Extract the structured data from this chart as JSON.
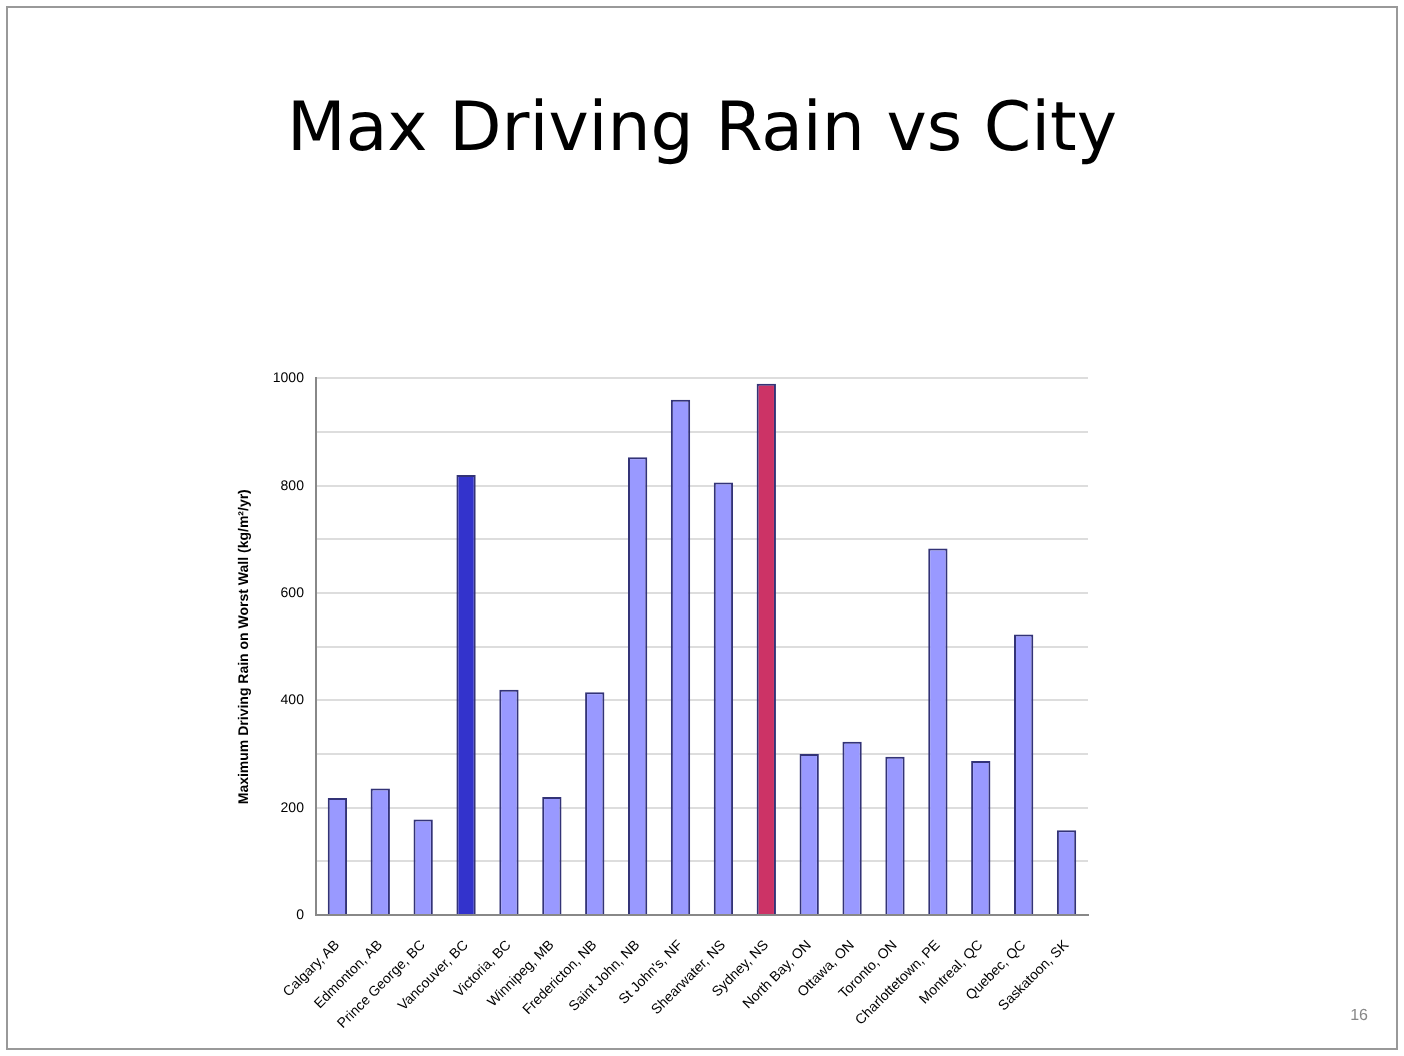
{
  "chart_data": {
    "type": "bar",
    "title": "Max Driving Rain vs City",
    "ylabel": "Maximum Driving Rain on Worst Wall (kg/m²/yr)",
    "categories": [
      "Calgary, AB",
      "Edmonton, AB",
      "Prince George, BC",
      "Vancouver, BC",
      "Victoria, BC",
      "Winnipeg, MB",
      "Fredericton, NB",
      "Saint John, NB",
      "St John's, NF",
      "Shearwater, NS",
      "Sydney, NS",
      "North Bay, ON",
      "Ottawa, ON",
      "Toronto, ON",
      "Charlottetown, PE",
      "Montreal, QC",
      "Quebec, QC",
      "Saskatoon, SK"
    ],
    "values": [
      218,
      236,
      178,
      820,
      420,
      220,
      415,
      853,
      960,
      806,
      990,
      300,
      323,
      295,
      683,
      287,
      523,
      158
    ],
    "colors": [
      "#9999ff",
      "#9999ff",
      "#9999ff",
      "#3333cc",
      "#9999ff",
      "#9999ff",
      "#9999ff",
      "#9999ff",
      "#9999ff",
      "#9999ff",
      "#cc3366",
      "#9999ff",
      "#9999ff",
      "#9999ff",
      "#9999ff",
      "#9999ff",
      "#9999ff",
      "#9999ff"
    ],
    "ylim": [
      0,
      1000
    ],
    "yticks": [
      0,
      {
        "value": 100,
        "label": null
      },
      200,
      {
        "value": 300,
        "label": null
      },
      400,
      {
        "value": 500,
        "label": null
      },
      600,
      {
        "value": 700,
        "label": null
      },
      800,
      {
        "value": 900,
        "label": null
      },
      1000
    ],
    "grid": "y",
    "legend": false,
    "annotations": [
      "16"
    ]
  }
}
